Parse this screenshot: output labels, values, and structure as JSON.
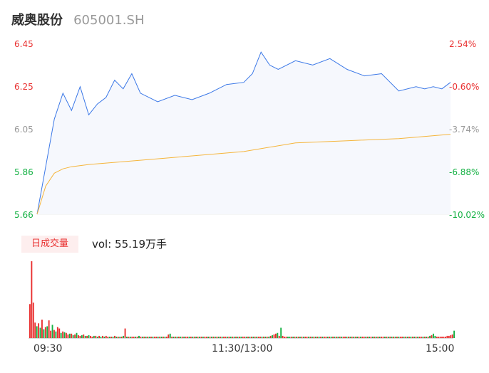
{
  "header": {
    "name": "威奥股份",
    "code": "605001.SH"
  },
  "price_axis": {
    "left_labels": [
      "6.45",
      "6.25",
      "6.05",
      "5.86",
      "5.66"
    ],
    "right_labels": [
      "2.54%",
      "-0.60%",
      "-3.74%",
      "-6.88%",
      "-10.02%"
    ],
    "colors": {
      "up": "#e93030",
      "flat": "#999999",
      "down": "#14b143"
    }
  },
  "volume_panel": {
    "badge": "日成交量",
    "vol_text": "vol: 55.19万手"
  },
  "time_axis": {
    "labels": [
      "09:30",
      "11:30/13:00",
      "15:00"
    ]
  },
  "colors": {
    "price_line": "#3b78e7",
    "avg_line": "#f5b53c",
    "area_fill": "#f6f8fd",
    "up": "#e93030",
    "down": "#14b143"
  },
  "chart_data": [
    {
      "type": "line",
      "title": "",
      "x_range": [
        "09:30",
        "15:00"
      ],
      "ylim": [
        5.66,
        6.45
      ],
      "y2lim_pct": [
        -10.02,
        2.54
      ],
      "series": [
        {
          "name": "",
          "x": [
            "09:30",
            "09:35",
            "09:40",
            "09:45",
            "09:50",
            "09:55",
            "10:00",
            "10:05",
            "10:10",
            "10:15",
            "10:20",
            "10:25",
            "10:30",
            "10:40",
            "10:50",
            "11:00",
            "11:10",
            "11:20",
            "11:30",
            "13:05",
            "13:10",
            "13:15",
            "13:20",
            "13:30",
            "13:40",
            "13:50",
            "14:00",
            "14:10",
            "14:20",
            "14:30",
            "14:40",
            "14:45",
            "14:50",
            "14:55",
            "15:00"
          ],
          "y": [
            5.66,
            5.88,
            6.1,
            6.22,
            6.14,
            6.25,
            6.12,
            6.17,
            6.2,
            6.28,
            6.24,
            6.31,
            6.22,
            6.18,
            6.21,
            6.19,
            6.22,
            6.26,
            6.27,
            6.31,
            6.41,
            6.35,
            6.33,
            6.37,
            6.35,
            6.38,
            6.33,
            6.3,
            6.31,
            6.23,
            6.25,
            6.24,
            6.25,
            6.24,
            6.27
          ]
        },
        {
          "name": "",
          "x": [
            "09:30",
            "09:35",
            "09:40",
            "09:45",
            "09:50",
            "10:00",
            "10:15",
            "10:30",
            "11:00",
            "11:30",
            "13:30",
            "14:00",
            "14:30",
            "15:00"
          ],
          "y": [
            5.66,
            5.79,
            5.85,
            5.87,
            5.88,
            5.89,
            5.9,
            5.91,
            5.93,
            5.95,
            5.99,
            6.0,
            6.01,
            6.03
          ]
        }
      ]
    },
    {
      "type": "bar",
      "title": "",
      "x_range": [
        "09:30",
        "15:00"
      ],
      "bars_count": 240,
      "series": [
        {
          "name": "",
          "values": [
            4.6,
            10.4,
            4.8,
            2.1,
            1.6,
            2.0,
            1.4,
            2.5,
            1.2,
            1.5,
            1.6,
            2.4,
            1.0,
            1.8,
            1.1,
            0.9,
            1.5,
            1.3,
            0.7,
            0.9,
            0.8,
            0.7,
            0.5,
            0.6,
            0.6,
            0.4,
            0.5,
            0.7,
            0.4,
            0.3,
            0.4,
            0.5,
            0.3,
            0.3,
            0.4,
            0.3,
            0.2,
            0.3,
            0.3,
            0.2,
            0.3,
            0.2,
            0.3,
            0.2,
            0.3,
            0.2,
            0.2,
            0.2,
            0.2,
            0.3,
            0.2,
            0.2,
            0.2,
            0.2,
            0.3,
            1.3,
            0.2,
            0.2,
            0.2,
            0.2,
            0.2,
            0.2,
            0.2,
            0.3,
            0.2,
            0.2,
            0.2,
            0.2,
            0.2,
            0.2,
            0.2,
            0.2,
            0.2,
            0.2,
            0.2,
            0.2,
            0.2,
            0.2,
            0.2,
            0.2,
            0.5,
            0.6,
            0.2,
            0.2,
            0.2,
            0.2,
            0.2,
            0.2,
            0.2,
            0.2,
            0.2,
            0.2,
            0.2,
            0.2,
            0.2,
            0.2,
            0.2,
            0.2,
            0.2,
            0.2,
            0.2,
            0.2,
            0.2,
            0.2,
            0.2,
            0.2,
            0.2,
            0.2,
            0.2,
            0.2,
            0.2,
            0.2,
            0.2,
            0.2,
            0.2,
            0.2,
            0.2,
            0.2,
            0.2,
            0.2,
            0.2,
            0.2,
            0.2,
            0.2,
            0.2,
            0.2,
            0.2,
            0.2,
            0.2,
            0.2,
            0.2,
            0.2,
            0.2,
            0.2,
            0.2,
            0.2,
            0.2,
            0.2,
            0.2,
            0.3,
            0.4,
            0.5,
            0.6,
            0.7,
            0.3,
            1.4,
            0.3,
            0.2,
            0.2,
            0.2,
            0.2,
            0.2,
            0.2,
            0.2,
            0.2,
            0.2,
            0.2,
            0.2,
            0.2,
            0.2,
            0.2,
            0.2,
            0.2,
            0.2,
            0.2,
            0.2,
            0.2,
            0.2,
            0.2,
            0.2,
            0.2,
            0.2,
            0.2,
            0.2,
            0.2,
            0.2,
            0.2,
            0.2,
            0.2,
            0.2,
            0.2,
            0.2,
            0.2,
            0.2,
            0.2,
            0.2,
            0.2,
            0.2,
            0.2,
            0.2,
            0.2,
            0.2,
            0.2,
            0.2,
            0.2,
            0.2,
            0.2,
            0.2,
            0.2,
            0.2,
            0.2,
            0.2,
            0.2,
            0.2,
            0.2,
            0.2,
            0.2,
            0.2,
            0.2,
            0.2,
            0.2,
            0.2,
            0.2,
            0.2,
            0.2,
            0.2,
            0.2,
            0.2,
            0.2,
            0.2,
            0.2,
            0.2,
            0.2,
            0.2,
            0.2,
            0.2,
            0.2,
            0.2,
            0.2,
            0.2,
            0.2,
            0.3,
            0.4,
            0.6,
            0.3,
            0.2,
            0.2,
            0.2,
            0.2,
            0.2,
            0.2,
            0.3,
            0.3,
            0.4,
            0.5,
            1.0
          ],
          "up_flags": [
            1,
            1,
            1,
            1,
            0,
            1,
            0,
            1,
            0,
            1,
            0,
            1,
            1,
            0,
            1,
            0,
            1,
            1,
            0,
            1,
            0,
            1,
            1,
            0,
            1,
            0,
            1,
            0,
            1,
            1,
            0,
            1,
            0,
            1,
            0,
            1,
            1,
            0,
            1,
            0,
            1,
            0,
            1,
            0,
            1,
            1,
            0,
            1,
            0,
            1,
            0,
            1,
            0,
            1,
            0,
            1,
            0,
            1,
            0,
            1,
            1,
            0,
            1,
            0,
            1,
            0,
            1,
            0,
            1,
            0,
            1,
            0,
            1,
            1,
            0,
            1,
            0,
            1,
            0,
            1,
            1,
            0,
            1,
            0,
            1,
            0,
            1,
            0,
            1,
            0,
            1,
            1,
            0,
            1,
            0,
            1,
            0,
            1,
            0,
            1,
            0,
            1,
            1,
            0,
            1,
            0,
            1,
            0,
            1,
            0,
            1,
            0,
            1,
            1,
            0,
            1,
            0,
            1,
            0,
            1,
            0,
            1,
            0,
            1,
            1,
            0,
            1,
            0,
            1,
            0,
            1,
            0,
            1,
            1,
            0,
            1,
            0,
            1,
            0,
            1,
            0,
            1,
            1,
            0,
            1,
            0,
            1,
            1,
            1,
            0,
            0,
            1,
            0,
            1,
            0,
            1,
            0,
            1,
            0,
            1,
            1,
            0,
            1,
            0,
            1,
            0,
            1,
            0,
            1,
            0,
            1,
            1,
            0,
            1,
            0,
            1,
            0,
            1,
            0,
            1,
            0,
            1,
            1,
            0,
            1,
            0,
            1,
            0,
            1,
            0,
            1,
            0,
            1,
            1,
            0,
            1,
            0,
            1,
            0,
            1,
            0,
            1,
            0,
            1,
            1,
            0,
            1,
            0,
            1,
            0,
            1,
            0,
            1,
            0,
            1,
            1,
            0,
            1,
            0,
            1,
            0,
            1,
            0,
            1,
            0,
            1,
            1,
            0,
            1,
            0,
            1,
            0,
            1,
            0,
            0,
            1,
            1,
            1,
            1,
            1,
            1,
            1,
            1,
            1,
            1
          ]
        }
      ]
    }
  ]
}
